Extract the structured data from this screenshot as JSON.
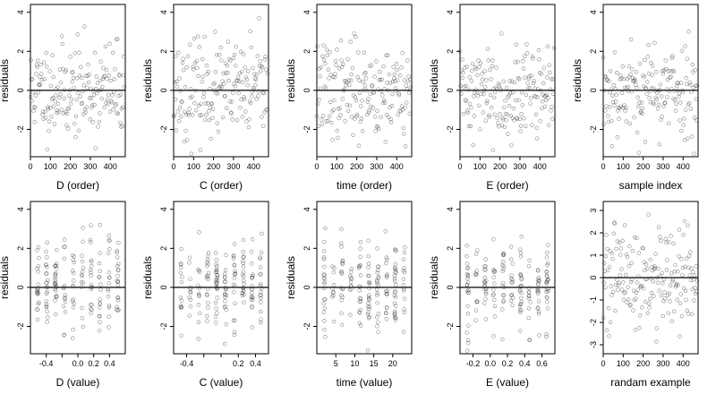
{
  "chart_data": [
    {
      "type": "scatter",
      "xlabel": "D (order)",
      "ylabel": "residuals",
      "xlim": [
        0,
        475
      ],
      "ylim": [
        -3.4,
        4.4
      ],
      "xticks": [
        {
          "v": 0,
          "label": "0"
        },
        {
          "v": 100,
          "label": "100"
        },
        {
          "v": 200,
          "label": "200"
        },
        {
          "v": 300,
          "label": "300"
        },
        {
          "v": 400,
          "label": "400"
        }
      ],
      "yticks": [
        {
          "v": -2,
          "label": "-2"
        },
        {
          "v": 0,
          "label": "0"
        },
        {
          "v": 2,
          "label": "2"
        },
        {
          "v": 4,
          "label": "4"
        }
      ],
      "hline": 0,
      "n": 180,
      "seed": 11,
      "mode": "order"
    },
    {
      "type": "scatter",
      "xlabel": "C (order)",
      "ylabel": "residuals",
      "xlim": [
        0,
        475
      ],
      "ylim": [
        -3.4,
        4.4
      ],
      "xticks": [
        {
          "v": 0,
          "label": "0"
        },
        {
          "v": 100,
          "label": "100"
        },
        {
          "v": 200,
          "label": "200"
        },
        {
          "v": 300,
          "label": "300"
        },
        {
          "v": 400,
          "label": "400"
        }
      ],
      "yticks": [
        {
          "v": -2,
          "label": "-2"
        },
        {
          "v": 0,
          "label": "0"
        },
        {
          "v": 2,
          "label": "2"
        },
        {
          "v": 4,
          "label": "4"
        }
      ],
      "hline": 0,
      "n": 180,
      "seed": 23,
      "mode": "order"
    },
    {
      "type": "scatter",
      "xlabel": "time (order)",
      "ylabel": "residuals",
      "xlim": [
        0,
        475
      ],
      "ylim": [
        -3.4,
        4.4
      ],
      "xticks": [
        {
          "v": 0,
          "label": "0"
        },
        {
          "v": 100,
          "label": "100"
        },
        {
          "v": 200,
          "label": "200"
        },
        {
          "v": 300,
          "label": "300"
        },
        {
          "v": 400,
          "label": "400"
        }
      ],
      "yticks": [
        {
          "v": -2,
          "label": "-2"
        },
        {
          "v": 0,
          "label": "0"
        },
        {
          "v": 2,
          "label": "2"
        },
        {
          "v": 4,
          "label": "4"
        }
      ],
      "hline": 0,
      "n": 180,
      "seed": 37,
      "mode": "order"
    },
    {
      "type": "scatter",
      "xlabel": "E (order)",
      "ylabel": "residuals",
      "xlim": [
        0,
        475
      ],
      "ylim": [
        -3.4,
        4.4
      ],
      "xticks": [
        {
          "v": 0,
          "label": "0"
        },
        {
          "v": 100,
          "label": "100"
        },
        {
          "v": 200,
          "label": "200"
        },
        {
          "v": 300,
          "label": "300"
        },
        {
          "v": 400,
          "label": "400"
        }
      ],
      "yticks": [
        {
          "v": -2,
          "label": "-2"
        },
        {
          "v": 0,
          "label": "0"
        },
        {
          "v": 2,
          "label": "2"
        },
        {
          "v": 4,
          "label": "4"
        }
      ],
      "hline": 0,
      "n": 180,
      "seed": 41,
      "mode": "order"
    },
    {
      "type": "scatter",
      "xlabel": "sample index",
      "ylabel": "residuals",
      "xlim": [
        0,
        475
      ],
      "ylim": [
        -3.4,
        4.4
      ],
      "xticks": [
        {
          "v": 0,
          "label": "0"
        },
        {
          "v": 100,
          "label": "100"
        },
        {
          "v": 200,
          "label": "200"
        },
        {
          "v": 300,
          "label": "300"
        },
        {
          "v": 400,
          "label": "400"
        }
      ],
      "yticks": [
        {
          "v": -2,
          "label": "-2"
        },
        {
          "v": 0,
          "label": "0"
        },
        {
          "v": 2,
          "label": "2"
        },
        {
          "v": 4,
          "label": "4"
        }
      ],
      "hline": 0,
      "n": 180,
      "seed": 53,
      "mode": "order"
    },
    {
      "type": "scatter",
      "xlabel": "D (value)",
      "ylabel": "residuals",
      "xlim": [
        -0.6,
        0.6
      ],
      "ylim": [
        -3.4,
        4.4
      ],
      "xticks": [
        {
          "v": -0.4,
          "label": "-0.4"
        },
        {
          "v": -0.2,
          "label": ""
        },
        {
          "v": 0.0,
          "label": "0.0"
        },
        {
          "v": 0.2,
          "label": "0.2"
        },
        {
          "v": 0.4,
          "label": "0.4"
        }
      ],
      "yticks": [
        {
          "v": -2,
          "label": "-2"
        },
        {
          "v": 0,
          "label": "0"
        },
        {
          "v": 2,
          "label": "2"
        },
        {
          "v": 4,
          "label": "4"
        }
      ],
      "hline": 0,
      "n": 180,
      "seed": 67,
      "mode": "value"
    },
    {
      "type": "scatter",
      "xlabel": "C (value)",
      "ylabel": "residuals",
      "xlim": [
        -0.55,
        0.55
      ],
      "ylim": [
        -3.4,
        4.4
      ],
      "xticks": [
        {
          "v": -0.4,
          "label": "-0.4"
        },
        {
          "v": -0.2,
          "label": ""
        },
        {
          "v": 0.0,
          "label": ""
        },
        {
          "v": 0.2,
          "label": "0.2"
        },
        {
          "v": 0.4,
          "label": "0.4"
        }
      ],
      "yticks": [
        {
          "v": -2,
          "label": "-2"
        },
        {
          "v": 0,
          "label": "0"
        },
        {
          "v": 2,
          "label": "2"
        },
        {
          "v": 4,
          "label": "4"
        }
      ],
      "hline": 0,
      "n": 180,
      "seed": 71,
      "mode": "value"
    },
    {
      "type": "scatter",
      "xlabel": "time (value)",
      "ylabel": "residuals",
      "xlim": [
        0,
        25
      ],
      "ylim": [
        -3.4,
        4.4
      ],
      "xticks": [
        {
          "v": 5,
          "label": "5"
        },
        {
          "v": 10,
          "label": "10"
        },
        {
          "v": 15,
          "label": "15"
        },
        {
          "v": 20,
          "label": "20"
        }
      ],
      "yticks": [
        {
          "v": -2,
          "label": "-2"
        },
        {
          "v": 0,
          "label": "0"
        },
        {
          "v": 2,
          "label": "2"
        },
        {
          "v": 4,
          "label": "4"
        }
      ],
      "hline": 0,
      "n": 180,
      "seed": 83,
      "mode": "value"
    },
    {
      "type": "scatter",
      "xlabel": "E (value)",
      "ylabel": "residuals",
      "xlim": [
        -0.35,
        0.75
      ],
      "ylim": [
        -3.4,
        4.4
      ],
      "xticks": [
        {
          "v": -0.2,
          "label": "-0.2"
        },
        {
          "v": 0.0,
          "label": "0.0"
        },
        {
          "v": 0.2,
          "label": "0.2"
        },
        {
          "v": 0.4,
          "label": "0.4"
        },
        {
          "v": 0.6,
          "label": "0.6"
        }
      ],
      "yticks": [
        {
          "v": -2,
          "label": "-2"
        },
        {
          "v": 0,
          "label": "0"
        },
        {
          "v": 2,
          "label": "2"
        },
        {
          "v": 4,
          "label": "4"
        }
      ],
      "hline": 0,
      "n": 180,
      "seed": 97,
      "mode": "value"
    },
    {
      "type": "scatter",
      "xlabel": "randam example",
      "ylabel": "",
      "xlim": [
        0,
        475
      ],
      "ylim": [
        -3.4,
        3.4
      ],
      "xticks": [
        {
          "v": 0,
          "label": "0"
        },
        {
          "v": 100,
          "label": "100"
        },
        {
          "v": 200,
          "label": "200"
        },
        {
          "v": 300,
          "label": "300"
        },
        {
          "v": 400,
          "label": "400"
        }
      ],
      "yticks": [
        {
          "v": -3,
          "label": "-3"
        },
        {
          "v": -2,
          "label": "-2"
        },
        {
          "v": -1,
          "label": "-1"
        },
        {
          "v": 0,
          "label": "0"
        },
        {
          "v": 1,
          "label": "1"
        },
        {
          "v": 2,
          "label": "2"
        },
        {
          "v": 3,
          "label": "3"
        }
      ],
      "hline": 0,
      "n": 180,
      "seed": 101,
      "mode": "order"
    }
  ]
}
